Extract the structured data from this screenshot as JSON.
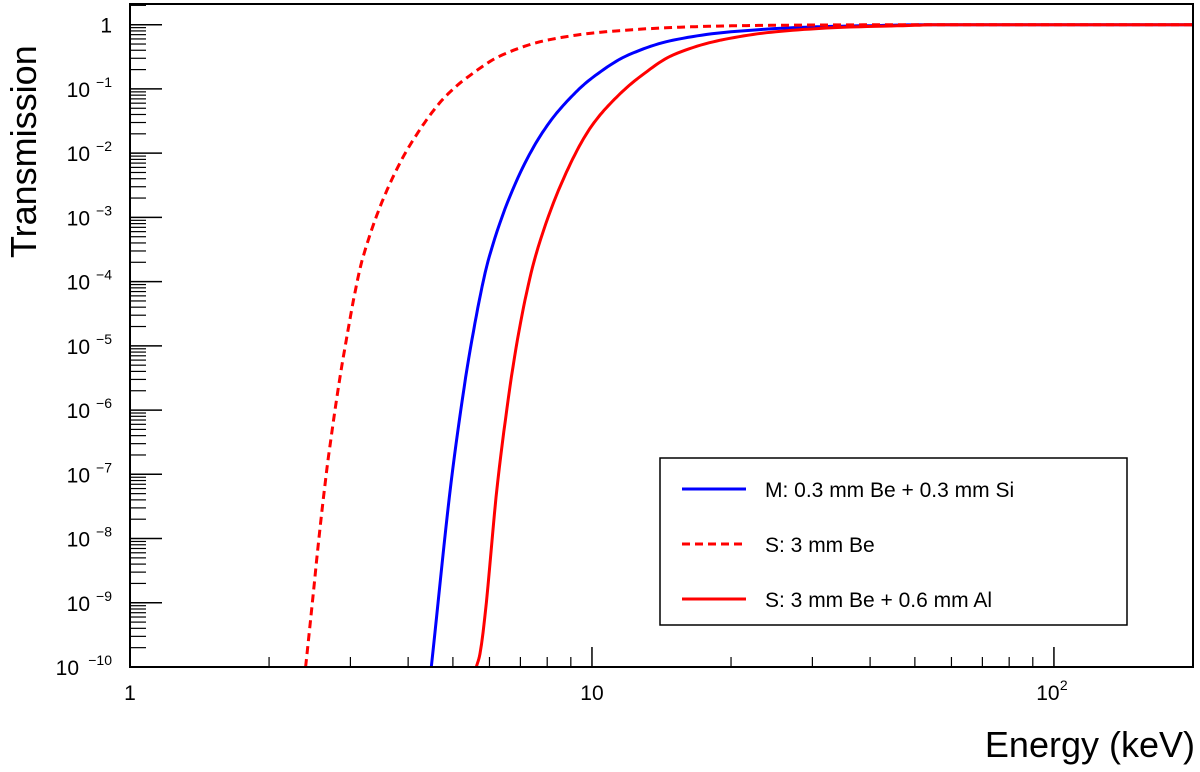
{
  "chart_data": {
    "type": "line",
    "title": "",
    "xlabel": "Energy (keV)",
    "ylabel": "Transmission",
    "xscale": "log",
    "yscale": "log",
    "xlim": [
      1,
      200
    ],
    "ylim": [
      1e-10,
      2.1
    ],
    "grid": false,
    "legend_position": "bottom-right",
    "x_ticks": [
      {
        "value": 1,
        "label": "1",
        "exp": ""
      },
      {
        "value": 10,
        "label": "10",
        "exp": ""
      },
      {
        "value": 100,
        "label": "10",
        "exp": "2"
      }
    ],
    "y_ticks": [
      {
        "value": 0,
        "label": "1",
        "exp": ""
      },
      {
        "value": -1,
        "label": "10",
        "exp": "−1"
      },
      {
        "value": -2,
        "label": "10",
        "exp": "−2"
      },
      {
        "value": -3,
        "label": "10",
        "exp": "−3"
      },
      {
        "value": -4,
        "label": "10",
        "exp": "−4"
      },
      {
        "value": -5,
        "label": "10",
        "exp": "−5"
      },
      {
        "value": -6,
        "label": "10",
        "exp": "−6"
      },
      {
        "value": -7,
        "label": "10",
        "exp": "−7"
      },
      {
        "value": -8,
        "label": "10",
        "exp": "−8"
      },
      {
        "value": -9,
        "label": "10",
        "exp": "−9"
      },
      {
        "value": -10,
        "label": "10",
        "exp": "−10"
      }
    ],
    "series": [
      {
        "name": "M: 0.3 mm Be + 0.3 mm Si",
        "color": "#0000ff",
        "dash": false,
        "x": [
          4.49,
          5,
          5.5,
          6,
          7,
          8,
          9,
          10,
          12,
          15,
          20,
          30,
          40,
          55,
          200
        ],
        "log10_y": [
          -10,
          -6.9,
          -4.9,
          -3.6,
          -2.3,
          -1.57,
          -1.13,
          -0.83,
          -0.47,
          -0.24,
          -0.11,
          -0.035,
          -0.015,
          0,
          0
        ]
      },
      {
        "name": "S: 3 mm Be",
        "color": "#ff0000",
        "dash": true,
        "x": [
          2.4,
          2.67,
          2.94,
          3.2,
          3.75,
          4.3,
          4.8,
          5.35,
          6.4,
          8,
          10.7,
          16,
          21,
          30,
          55,
          200
        ],
        "log10_y": [
          -10,
          -6.9,
          -4.9,
          -3.6,
          -2.3,
          -1.57,
          -1.13,
          -0.83,
          -0.47,
          -0.24,
          -0.11,
          -0.035,
          -0.015,
          -0.005,
          0,
          0
        ]
      },
      {
        "name": "S: 3 mm Be + 0.6 mm Al",
        "color": "#ff0000",
        "dash": false,
        "x": [
          5.62,
          5.72,
          6.3,
          6.9,
          7.55,
          8.8,
          10,
          11.3,
          12.6,
          15,
          19,
          25,
          35,
          50,
          55,
          200
        ],
        "log10_y": [
          -10,
          -9.8,
          -6.9,
          -4.9,
          -3.6,
          -2.3,
          -1.57,
          -1.13,
          -0.83,
          -0.47,
          -0.24,
          -0.11,
          -0.04,
          -0.01,
          0,
          0
        ]
      }
    ]
  }
}
